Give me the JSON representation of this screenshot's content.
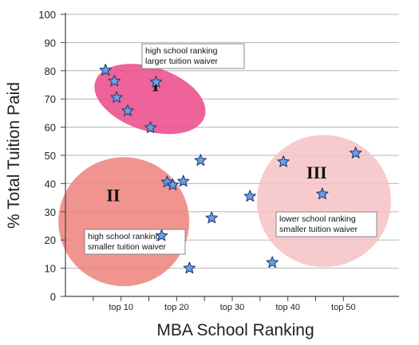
{
  "chart_data": {
    "type": "scatter",
    "title": "",
    "xlabel": "MBA School Ranking",
    "ylabel": "% Total Tuition Paid",
    "ylim": [
      0,
      100
    ],
    "xlim": [
      0,
      60
    ],
    "grid": true,
    "yticks": [
      "0",
      "10",
      "20",
      "30",
      "40",
      "50",
      "60",
      "70",
      "80",
      "90",
      "100"
    ],
    "xticks": [
      {
        "label": "top 10",
        "x": 10
      },
      {
        "label": "top 20",
        "x": 20
      },
      {
        "label": "top 30",
        "x": 30
      },
      {
        "label": "top 40",
        "x": 40
      },
      {
        "label": "top 50",
        "x": 50
      }
    ],
    "series": [
      {
        "x": [
          7.2,
          8.8,
          9.2,
          11.2,
          15.3,
          16.3,
          17.3,
          18.3,
          19.3,
          21.2,
          22.3,
          24.3,
          26.3,
          33.2,
          37.2,
          39.2,
          46.2,
          52.2
        ],
        "y": [
          80.2,
          76.3,
          70.5,
          65.8,
          59.8,
          76.0,
          21.5,
          40.5,
          39.5,
          40.8,
          10.0,
          48.2,
          27.8,
          35.5,
          12.0,
          47.7,
          36.3,
          50.8
        ]
      }
    ],
    "regions": [
      {
        "label": "I",
        "note": [
          "high school ranking",
          "larger tuition waiver"
        ],
        "color": "#ea4d8c"
      },
      {
        "label": "II",
        "note": [
          "high school ranking",
          "smaller tuition waiver"
        ],
        "color": "#ee8581"
      },
      {
        "label": "III",
        "note": [
          "lower school ranking",
          "smaller tuition waiver"
        ],
        "color": "#f6c2c4"
      }
    ]
  }
}
